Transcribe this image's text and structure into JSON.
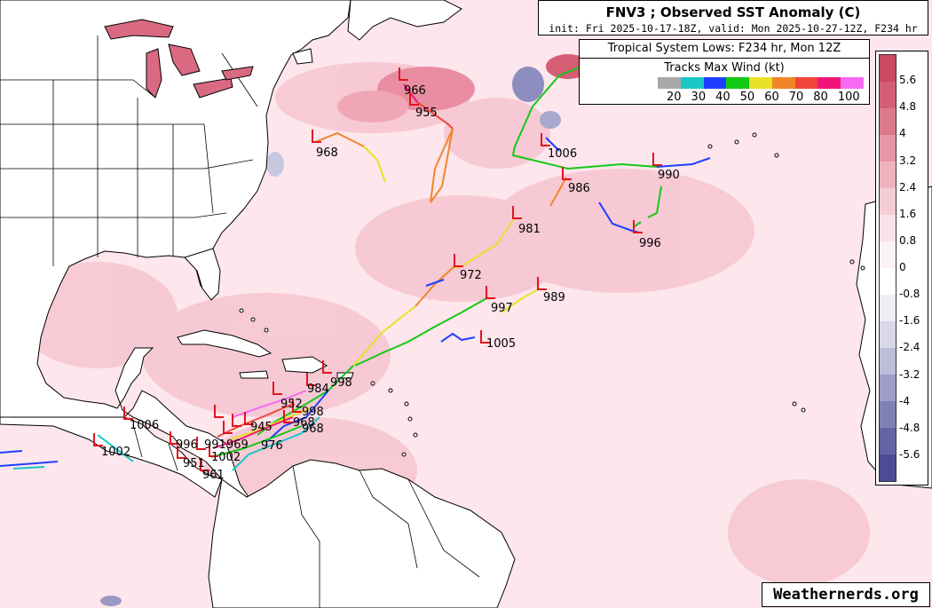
{
  "title": "FNV3 ; Observed SST Anomaly (C)",
  "subtitle": "init: Fri 2025-10-17-18Z, valid: Mon 2025-10-27-12Z, F234 hr",
  "legend": {
    "heading": "Tropical System Lows: F234 hr, Mon 12Z",
    "subheading": "Tracks Max Wind (kt)",
    "wind_bins": [
      {
        "label": "",
        "color": "#a9a9a9"
      },
      {
        "label": "20",
        "color": "#19c7c7"
      },
      {
        "label": "30",
        "color": "#1f3fff"
      },
      {
        "label": "40",
        "color": "#13c913"
      },
      {
        "label": "50",
        "color": "#e9e12a"
      },
      {
        "label": "60",
        "color": "#f0862a"
      },
      {
        "label": "70",
        "color": "#f2453a"
      },
      {
        "label": "80",
        "color": "#f0157a"
      },
      {
        "label": "100",
        "color": "#f76af2"
      }
    ]
  },
  "colorbar": {
    "labels": [
      "5.6",
      "4.8",
      "4",
      "3.2",
      "2.4",
      "1.6",
      "0.8",
      "0",
      "-0.8",
      "-1.6",
      "-2.4",
      "-3.2",
      "-4",
      "-4.8",
      "-5.6"
    ],
    "colors": [
      "#c94a62",
      "#d25f75",
      "#dc7a8c",
      "#e597a6",
      "#edb4bf",
      "#f4cdd6",
      "#fae2e8",
      "#fdf3f6",
      "#ffffff",
      "#eeeef6",
      "#d8d8ea",
      "#bdbdda",
      "#9e9ec8",
      "#8080b6",
      "#6464a4",
      "#4c4c96"
    ]
  },
  "lows": [
    {
      "pressure": "996"
    },
    {
      "pressure": "966"
    },
    {
      "pressure": "955"
    },
    {
      "pressure": "968"
    },
    {
      "pressure": "1006"
    },
    {
      "pressure": "990"
    },
    {
      "pressure": "986"
    },
    {
      "pressure": "981"
    },
    {
      "pressure": "996"
    },
    {
      "pressure": "972"
    },
    {
      "pressure": "997"
    },
    {
      "pressure": "989"
    },
    {
      "pressure": "1005"
    },
    {
      "pressure": "998"
    },
    {
      "pressure": "984"
    },
    {
      "pressure": "952"
    },
    {
      "pressure": "998"
    },
    {
      "pressure": "968"
    },
    {
      "pressure": "968"
    },
    {
      "pressure": "1006"
    },
    {
      "pressure": "1002"
    },
    {
      "pressure": "996"
    },
    {
      "pressure": "991"
    },
    {
      "pressure": "969"
    },
    {
      "pressure": "945"
    },
    {
      "pressure": "976"
    },
    {
      "pressure": "951"
    },
    {
      "pressure": "1002"
    },
    {
      "pressure": "961"
    }
  ],
  "credit": "Weathernerds.org"
}
